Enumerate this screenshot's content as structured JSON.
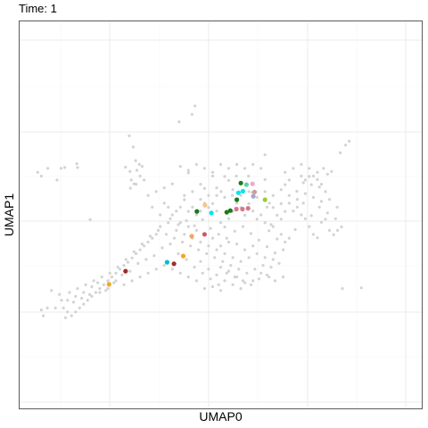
{
  "chart_data": {
    "type": "scatter",
    "title": "Time: 1",
    "xlabel": "UMAP0",
    "ylabel": "UMAP1",
    "grid": true,
    "axis_ticks_labeled": false,
    "xlim": [
      0,
      100
    ],
    "ylim": [
      0,
      100
    ],
    "background_color": "#d3d3d3",
    "background_points": [
      [
        4.6,
        61.0
      ],
      [
        5.5,
        60.0
      ],
      [
        7.1,
        62.0
      ],
      [
        9.4,
        59.0
      ],
      [
        10.4,
        62.0
      ],
      [
        11.3,
        62.2
      ],
      [
        14.3,
        63.2
      ],
      [
        14.5,
        62.2
      ],
      [
        17.6,
        48.8
      ],
      [
        27.3,
        70.4
      ],
      [
        28.3,
        67.5
      ],
      [
        26.4,
        62.3
      ],
      [
        27.5,
        61.2
      ],
      [
        27.8,
        59.0
      ],
      [
        29.0,
        57.9
      ],
      [
        30.0,
        60.0
      ],
      [
        31.0,
        59.0
      ],
      [
        28.5,
        58.0
      ],
      [
        29.2,
        61.5
      ],
      [
        30.5,
        62.5
      ],
      [
        29.8,
        63.0
      ],
      [
        28.9,
        64.0
      ],
      [
        27.6,
        56.9
      ],
      [
        39.7,
        74.0
      ],
      [
        42.9,
        75.9
      ],
      [
        43.6,
        78.1
      ],
      [
        42.0,
        60.8
      ],
      [
        45.0,
        57.9
      ],
      [
        48.0,
        60.0
      ],
      [
        50.1,
        56.0
      ],
      [
        51.0,
        59.9
      ],
      [
        52.0,
        58.9
      ],
      [
        53.9,
        60.0
      ],
      [
        55.0,
        58.1
      ],
      [
        56.9,
        60.0
      ],
      [
        57.8,
        55.8
      ],
      [
        52.9,
        55.0
      ],
      [
        49.0,
        55.0
      ],
      [
        46.0,
        56.8
      ],
      [
        61.0,
        65.5
      ],
      [
        61.0,
        59.1
      ],
      [
        61.5,
        52.0
      ],
      [
        62.1,
        53.0
      ],
      [
        65.0,
        52.9
      ],
      [
        66.0,
        57.8
      ],
      [
        67.0,
        59.0
      ],
      [
        68.9,
        56.1
      ],
      [
        70.0,
        60.0
      ],
      [
        71.0,
        59.0
      ],
      [
        72.0,
        59.9
      ],
      [
        73.0,
        60.0
      ],
      [
        74.0,
        59.1
      ],
      [
        75.0,
        57.9
      ],
      [
        76.0,
        56.0
      ],
      [
        75.5,
        62.0
      ],
      [
        76.5,
        60.5
      ],
      [
        74.5,
        57.2
      ],
      [
        72.5,
        57.8
      ],
      [
        70.5,
        58.3
      ],
      [
        77.5,
        61.2
      ],
      [
        79.7,
        66.0
      ],
      [
        81.0,
        68.0
      ],
      [
        81.9,
        69.0
      ],
      [
        78.9,
        52.0
      ],
      [
        80.0,
        46.9
      ],
      [
        79.0,
        46.0
      ],
      [
        78.0,
        44.9
      ],
      [
        77.0,
        46.0
      ],
      [
        76.0,
        48.9
      ],
      [
        75.0,
        48.1
      ],
      [
        74.0,
        44.1
      ],
      [
        73.0,
        45.0
      ],
      [
        72.0,
        47.0
      ],
      [
        71.0,
        49.0
      ],
      [
        70.0,
        50.0
      ],
      [
        69.0,
        52.0
      ],
      [
        68.0,
        51.0
      ],
      [
        67.0,
        53.0
      ],
      [
        66.0,
        50.9
      ],
      [
        65.0,
        48.9
      ],
      [
        64.0,
        49.9
      ],
      [
        63.0,
        51.9
      ],
      [
        62.5,
        47.5
      ],
      [
        68.5,
        46.2
      ],
      [
        70.5,
        53.0
      ],
      [
        72.5,
        49.8
      ],
      [
        74.5,
        52.0
      ],
      [
        76.5,
        50.5
      ],
      [
        78.5,
        49.0
      ],
      [
        80.2,
        31.0
      ],
      [
        84.9,
        31.2
      ],
      [
        36.0,
        53.0
      ],
      [
        37.0,
        52.0
      ],
      [
        38.0,
        50.0
      ],
      [
        39.0,
        51.0
      ],
      [
        40.0,
        52.0
      ],
      [
        41.0,
        53.9
      ],
      [
        42.0,
        50.9
      ],
      [
        43.0,
        52.0
      ],
      [
        44.0,
        50.0
      ],
      [
        45.0,
        51.0
      ],
      [
        46.0,
        53.0
      ],
      [
        47.0,
        51.9
      ],
      [
        48.0,
        52.9
      ],
      [
        49.0,
        51.0
      ],
      [
        50.0,
        48.0
      ],
      [
        51.0,
        46.9
      ],
      [
        52.0,
        49.0
      ],
      [
        53.0,
        50.9
      ],
      [
        54.0,
        53.0
      ],
      [
        55.0,
        51.9
      ],
      [
        56.0,
        49.9
      ],
      [
        57.0,
        52.9
      ],
      [
        58.0,
        51.0
      ],
      [
        59.0,
        48.9
      ],
      [
        60.0,
        50.0
      ],
      [
        61.0,
        48.0
      ],
      [
        62.0,
        45.9
      ],
      [
        63.0,
        47.0
      ],
      [
        64.0,
        43.8
      ],
      [
        65.0,
        45.0
      ],
      [
        66.0,
        43.0
      ],
      [
        67.0,
        44.0
      ],
      [
        37.5,
        49.0
      ],
      [
        39.5,
        47.5
      ],
      [
        41.5,
        48.5
      ],
      [
        43.5,
        47.2
      ],
      [
        45.5,
        48.8
      ],
      [
        47.5,
        46.5
      ],
      [
        49.5,
        45.0
      ],
      [
        51.5,
        44.0
      ],
      [
        53.5,
        45.8
      ],
      [
        55.5,
        47.0
      ],
      [
        57.5,
        45.2
      ],
      [
        59.5,
        43.5
      ],
      [
        61.5,
        41.8
      ],
      [
        63.5,
        40.2
      ],
      [
        65.5,
        41.0
      ],
      [
        35.0,
        47.0
      ],
      [
        34.0,
        45.0
      ],
      [
        33.0,
        44.0
      ],
      [
        32.0,
        43.0
      ],
      [
        31.0,
        42.0
      ],
      [
        30.0,
        41.0
      ],
      [
        29.0,
        40.0
      ],
      [
        28.0,
        38.9
      ],
      [
        27.0,
        37.8
      ],
      [
        26.0,
        37.0
      ],
      [
        25.0,
        36.0
      ],
      [
        24.0,
        35.0
      ],
      [
        23.0,
        34.0
      ],
      [
        22.0,
        33.0
      ],
      [
        21.0,
        32.0
      ],
      [
        20.0,
        31.0
      ],
      [
        19.0,
        30.0
      ],
      [
        18.0,
        29.0
      ],
      [
        17.0,
        28.0
      ],
      [
        16.0,
        27.0
      ],
      [
        15.0,
        26.0
      ],
      [
        14.0,
        25.0
      ],
      [
        13.0,
        24.0
      ],
      [
        12.0,
        25.0
      ],
      [
        11.0,
        26.0
      ],
      [
        10.5,
        28.0
      ],
      [
        12.5,
        30.0
      ],
      [
        14.5,
        31.0
      ],
      [
        16.5,
        32.0
      ],
      [
        18.5,
        33.0
      ],
      [
        20.5,
        34.0
      ],
      [
        22.5,
        35.0
      ],
      [
        24.5,
        36.5
      ],
      [
        26.5,
        38.5
      ],
      [
        28.5,
        40.5
      ],
      [
        30.5,
        42.5
      ],
      [
        32.5,
        44.5
      ],
      [
        34.5,
        46.0
      ],
      [
        36.5,
        45.0
      ],
      [
        38.5,
        44.0
      ],
      [
        40.5,
        43.0
      ],
      [
        42.5,
        42.0
      ],
      [
        44.5,
        41.0
      ],
      [
        46.5,
        40.0
      ],
      [
        48.5,
        39.0
      ],
      [
        50.5,
        38.0
      ],
      [
        52.5,
        37.0
      ],
      [
        54.5,
        36.0
      ],
      [
        56.5,
        35.0
      ],
      [
        58.5,
        36.0
      ],
      [
        60.5,
        37.0
      ],
      [
        62.5,
        36.5
      ],
      [
        64.5,
        37.5
      ],
      [
        45.0,
        38.0
      ],
      [
        47.0,
        36.0
      ],
      [
        49.0,
        34.5
      ],
      [
        51.0,
        33.0
      ],
      [
        53.0,
        32.0
      ],
      [
        55.0,
        31.0
      ],
      [
        48.0,
        31.5
      ],
      [
        50.0,
        30.5
      ],
      [
        46.0,
        31.0
      ],
      [
        44.0,
        33.0
      ],
      [
        42.0,
        34.0
      ],
      [
        40.0,
        35.0
      ],
      [
        38.0,
        36.0
      ],
      [
        36.0,
        37.0
      ],
      [
        34.0,
        36.0
      ],
      [
        32.0,
        35.0
      ],
      [
        30.0,
        34.0
      ],
      [
        28.0,
        33.0
      ],
      [
        26.0,
        32.0
      ],
      [
        24.0,
        33.0
      ],
      [
        22.0,
        31.0
      ],
      [
        20.0,
        30.0
      ],
      [
        18.0,
        31.5
      ],
      [
        16.0,
        30.0
      ],
      [
        14.0,
        29.0
      ],
      [
        12.0,
        28.0
      ],
      [
        10.0,
        29.5
      ],
      [
        8.0,
        30.5
      ],
      [
        9.0,
        26.0
      ],
      [
        7.0,
        26.0
      ],
      [
        6.0,
        24.0
      ],
      [
        5.5,
        25.5
      ],
      [
        11.5,
        23.5
      ],
      [
        13.5,
        27.5
      ],
      [
        15.5,
        28.5
      ],
      [
        17.5,
        29.5
      ],
      [
        19.5,
        32.5
      ],
      [
        21.5,
        30.5
      ],
      [
        23.5,
        32.5
      ],
      [
        25.5,
        34.5
      ],
      [
        27.5,
        35.5
      ],
      [
        29.5,
        37.5
      ],
      [
        31.5,
        38.5
      ],
      [
        33.5,
        39.5
      ],
      [
        35.5,
        41.5
      ],
      [
        37.5,
        42.5
      ],
      [
        39.5,
        40.0
      ],
      [
        41.5,
        38.5
      ],
      [
        43.5,
        36.5
      ],
      [
        45.5,
        35.0
      ],
      [
        47.5,
        33.5
      ],
      [
        49.5,
        32.0
      ],
      [
        51.5,
        35.0
      ],
      [
        53.5,
        34.0
      ],
      [
        55.5,
        33.0
      ],
      [
        57.5,
        32.0
      ],
      [
        59.5,
        33.5
      ],
      [
        61.5,
        34.5
      ],
      [
        63.5,
        33.0
      ],
      [
        65.5,
        34.0
      ],
      [
        41.0,
        55.0
      ],
      [
        43.0,
        56.0
      ],
      [
        45.0,
        54.0
      ],
      [
        47.0,
        55.0
      ],
      [
        49.0,
        57.0
      ],
      [
        51.0,
        54.5
      ],
      [
        53.0,
        56.5
      ],
      [
        55.0,
        55.0
      ],
      [
        57.0,
        56.0
      ],
      [
        59.0,
        54.5
      ],
      [
        61.0,
        56.0
      ],
      [
        63.0,
        55.0
      ],
      [
        65.0,
        56.5
      ],
      [
        67.0,
        55.0
      ],
      [
        69.0,
        54.0
      ],
      [
        71.0,
        55.5
      ],
      [
        73.0,
        54.5
      ],
      [
        75.0,
        53.5
      ],
      [
        77.0,
        54.0
      ],
      [
        66.0,
        61.0
      ],
      [
        68.0,
        62.0
      ],
      [
        70.0,
        63.0
      ],
      [
        72.0,
        62.0
      ],
      [
        74.0,
        61.0
      ],
      [
        60.0,
        62.0
      ],
      [
        58.0,
        63.0
      ],
      [
        56.0,
        62.0
      ],
      [
        54.0,
        63.0
      ],
      [
        52.0,
        62.0
      ],
      [
        50.0,
        63.0
      ],
      [
        48.0,
        61.0
      ],
      [
        46.0,
        62.0
      ],
      [
        44.0,
        63.0
      ],
      [
        42.0,
        61.5
      ],
      [
        40.0,
        62.5
      ],
      [
        38.0,
        58.0
      ],
      [
        36.0,
        57.0
      ],
      [
        34.0,
        56.0
      ],
      [
        32.0,
        55.0
      ],
      [
        33.0,
        52.0
      ],
      [
        35.0,
        50.0
      ],
      [
        37.0,
        48.0
      ],
      [
        39.0,
        46.0
      ],
      [
        41.0,
        45.0
      ],
      [
        43.0,
        44.0
      ],
      [
        45.0,
        43.0
      ],
      [
        47.0,
        42.0
      ],
      [
        49.0,
        41.0
      ],
      [
        51.0,
        40.0
      ],
      [
        53.0,
        39.0
      ],
      [
        55.0,
        38.0
      ],
      [
        57.0,
        39.0
      ],
      [
        59.0,
        40.0
      ],
      [
        61.0,
        39.0
      ],
      [
        63.0,
        38.5
      ],
      [
        58.0,
        42.0
      ],
      [
        56.0,
        41.0
      ],
      [
        54.0,
        42.5
      ],
      [
        52.0,
        43.0
      ],
      [
        50.0,
        42.0
      ],
      [
        48.0,
        44.0
      ],
      [
        46.0,
        45.0
      ],
      [
        44.0,
        46.0
      ],
      [
        42.0,
        47.0
      ],
      [
        40.0,
        48.0
      ],
      [
        50.0,
        36.5
      ],
      [
        52.0,
        35.5
      ],
      [
        54.0,
        34.0
      ],
      [
        56.0,
        32.5
      ],
      [
        58.0,
        33.0
      ],
      [
        60.0,
        35.0
      ],
      [
        62.0,
        34.0
      ]
    ],
    "highlight_points": [
      {
        "x": 52.4,
        "y": 51.1,
        "color": "#1a7a1a"
      },
      {
        "x": 46.1,
        "y": 52.5,
        "color": "#f5c58b"
      },
      {
        "x": 44.1,
        "y": 50.9,
        "color": "#1a7a1a"
      },
      {
        "x": 46.0,
        "y": 45.0,
        "color": "#cc5a6a"
      },
      {
        "x": 47.7,
        "y": 50.5,
        "color": "#00e5ee"
      },
      {
        "x": 51.5,
        "y": 50.7,
        "color": "#1a7a1a"
      },
      {
        "x": 53.9,
        "y": 51.5,
        "color": "#d4788a"
      },
      {
        "x": 55.4,
        "y": 51.5,
        "color": "#d4788a"
      },
      {
        "x": 56.8,
        "y": 51.7,
        "color": "#d4788a"
      },
      {
        "x": 54.0,
        "y": 53.9,
        "color": "#1a7a1a"
      },
      {
        "x": 54.4,
        "y": 55.7,
        "color": "#00e5ee"
      },
      {
        "x": 55.5,
        "y": 56.1,
        "color": "#00e5ee"
      },
      {
        "x": 56.4,
        "y": 57.8,
        "color": "#66cdaa"
      },
      {
        "x": 55.0,
        "y": 58.2,
        "color": "#1a7a1a"
      },
      {
        "x": 58.1,
        "y": 54.8,
        "color": "#a6a6c8"
      },
      {
        "x": 58.4,
        "y": 55.9,
        "color": "#cd9b9b"
      },
      {
        "x": 57.9,
        "y": 58.0,
        "color": "#f4a7c2"
      },
      {
        "x": 61.0,
        "y": 53.9,
        "color": "#9acd32"
      },
      {
        "x": 42.8,
        "y": 44.5,
        "color": "#f4a460"
      },
      {
        "x": 40.7,
        "y": 39.4,
        "color": "#f5a623"
      },
      {
        "x": 36.7,
        "y": 37.8,
        "color": "#00bcd4"
      },
      {
        "x": 38.4,
        "y": 37.4,
        "color": "#a52a2a"
      },
      {
        "x": 26.4,
        "y": 35.5,
        "color": "#a52a2a"
      },
      {
        "x": 22.3,
        "y": 32.1,
        "color": "#f5a623"
      }
    ]
  }
}
